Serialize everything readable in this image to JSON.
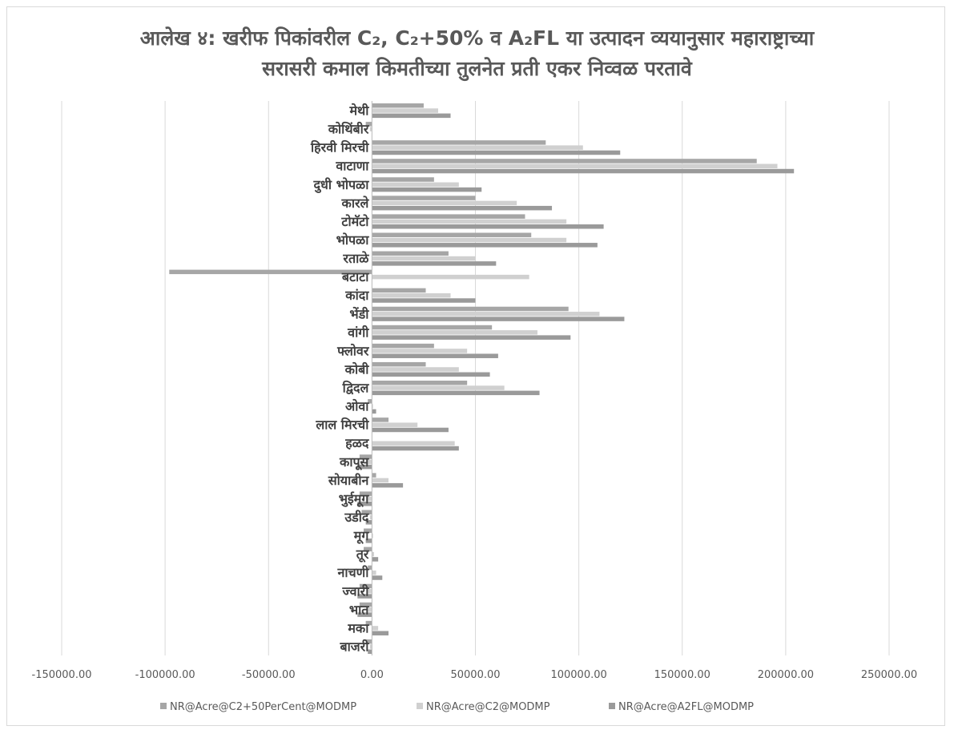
{
  "chart_data": {
    "type": "bar",
    "orientation": "horizontal",
    "title_line1": "आलेख ४: खरीफ पिकांवरील C₂, C₂+50%  व A₂FL या उत्पादन व्ययानुसार महाराष्ट्राच्या",
    "title_line2": "सरासरी कमाल किमतीच्या तुलनेत प्रती एकर निव्वळ परतावे",
    "xlim": [
      -150000,
      250000
    ],
    "xticks": [
      "-150000.00",
      "-100000.00",
      "-50000.00",
      "0.00",
      "50000.00",
      "100000.00",
      "150000.00",
      "200000.00",
      "250000.00"
    ],
    "grid": true,
    "legend_position": "bottom",
    "categories": [
      "मेथी",
      "कोथिंबीर",
      "हिरवी मिरची",
      "वाटाणा",
      "दुधी भोपळा",
      "कारले",
      "टोमॅटो",
      "भोपळा",
      "रताळे",
      "बटाटा",
      "कांदा",
      "भेंडी",
      "वांगी",
      "फ्लोवर",
      "कोबी",
      "द्विदल",
      "ओवा",
      "लाल मिरची",
      "हळद",
      "कापूस",
      "सोयाबीन",
      "भुईमूग",
      "उडीद",
      "मूग",
      "तूर",
      "नाचणी",
      "ज्वारी",
      "भात",
      "मका",
      "बाजरी"
    ],
    "series": [
      {
        "name": "NR@Acre@C2+50PerCent@MODMP",
        "color": "#a6a6a6",
        "values": [
          25000,
          -3000,
          84000,
          186000,
          30000,
          50000,
          74000,
          77000,
          37000,
          -98000,
          26000,
          95000,
          58000,
          30000,
          26000,
          46000,
          -2000,
          8000,
          0,
          -6000,
          2000,
          -6000,
          -5000,
          -4000,
          -4000,
          -2000,
          -6000,
          -6000,
          -3000,
          -3000
        ]
      },
      {
        "name": "NR@Acre@C2@MODMP",
        "color": "#d0d0d0",
        "values": [
          32000,
          -1000,
          102000,
          196000,
          42000,
          70000,
          94000,
          94000,
          50000,
          76000,
          38000,
          110000,
          80000,
          46000,
          42000,
          64000,
          500,
          22000,
          40000,
          -3000,
          8000,
          -3000,
          -1000,
          500,
          1000,
          2000,
          -2000,
          -2000,
          3000,
          -1000
        ]
      },
      {
        "name": "NR@Acre@A2FL@MODMP",
        "color": "#9a9a9a",
        "values": [
          38000,
          0,
          120000,
          204000,
          53000,
          87000,
          112000,
          109000,
          60000,
          0,
          50000,
          122000,
          96000,
          61000,
          57000,
          81000,
          2000,
          37000,
          42000,
          -7000,
          15000,
          -7000,
          -3000,
          -3000,
          3000,
          5000,
          -7000,
          -7000,
          8000,
          -2000
        ]
      }
    ]
  }
}
